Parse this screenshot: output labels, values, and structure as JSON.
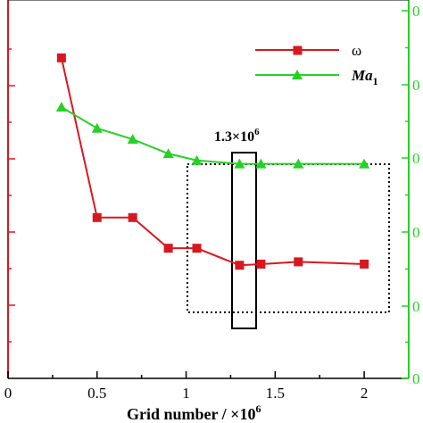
{
  "chart_data": {
    "type": "line",
    "xlabel": "Grid number / ×10",
    "xlabel_exp": "6",
    "xlim": [
      0,
      2.25
    ],
    "x_ticks": [
      "0",
      "0.5",
      "1",
      "1.5",
      "2"
    ],
    "x_tick_values": [
      0,
      0.5,
      1,
      1.5,
      2
    ],
    "left_axis_color": "#d8181f",
    "right_axis_color": "#26d126",
    "right_tick_labels": [
      "0",
      "0",
      "0",
      "0",
      "0",
      "0"
    ],
    "grid": false,
    "legend_position": "top-right",
    "series": [
      {
        "name": "ω",
        "color": "#d8181f",
        "marker": "square",
        "axis": "left",
        "x": [
          0.3,
          0.5,
          0.7,
          0.9,
          1.06,
          1.3,
          1.42,
          1.63,
          2.0
        ],
        "y": [
          0.847,
          0.425,
          0.425,
          0.344,
          0.344,
          0.299,
          0.302,
          0.308,
          0.302
        ]
      },
      {
        "name": "Ma",
        "name_subscript": "1",
        "color": "#26d126",
        "marker": "triangle",
        "axis": "right",
        "x": [
          0.3,
          0.5,
          0.7,
          0.9,
          1.06,
          1.3,
          1.42,
          1.63,
          2.0
        ],
        "y": [
          0.717,
          0.661,
          0.632,
          0.594,
          0.576,
          0.567,
          0.567,
          0.567,
          0.567
        ]
      }
    ],
    "annotations": [
      {
        "text": "1.3×10",
        "superscript": "6"
      }
    ]
  }
}
